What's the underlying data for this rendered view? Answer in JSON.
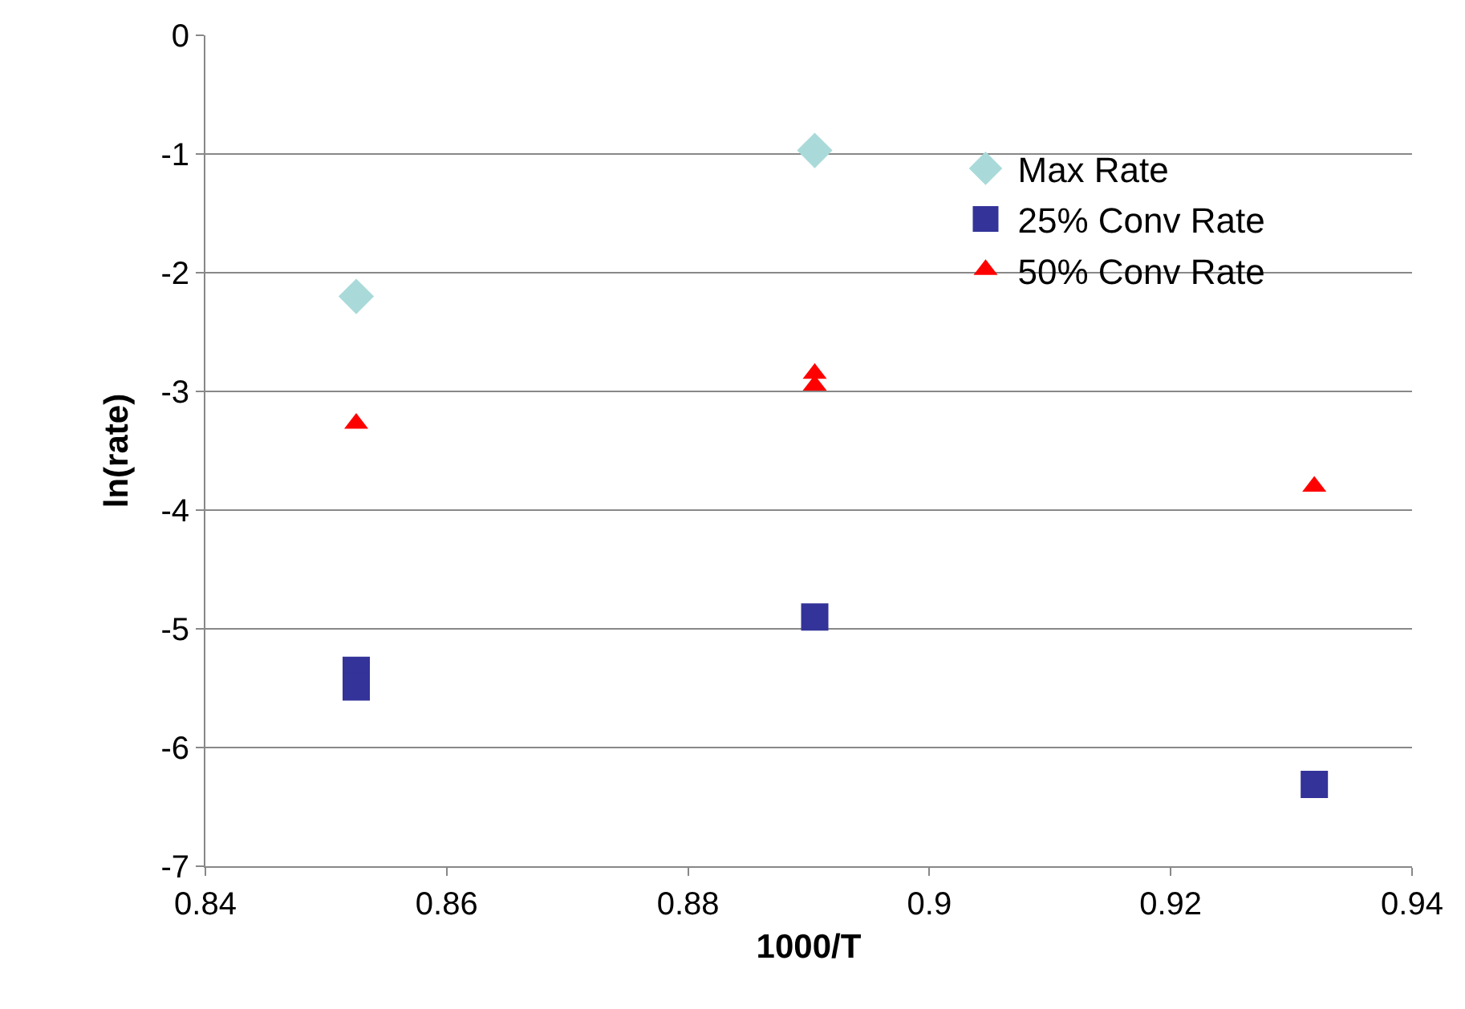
{
  "chart_data": {
    "type": "scatter",
    "xlabel": "1000/T",
    "ylabel": "ln(rate)",
    "xlim": [
      0.84,
      0.94
    ],
    "xticks": [
      0.84,
      0.86,
      0.88,
      0.9,
      0.92,
      0.94
    ],
    "ylim": [
      -7,
      0
    ],
    "yticks": [
      -7,
      -6,
      -5,
      -4,
      -3,
      -2,
      -1,
      0
    ],
    "grid": "y",
    "legend": "top right",
    "series": [
      {
        "name": "Max Rate",
        "color": "#a9dad9",
        "marker": "diamond",
        "x": [
          0.8525,
          0.8905
        ],
        "values": [
          -2.2,
          -0.97
        ]
      },
      {
        "name": "25% Conv Rate",
        "color": "#333399",
        "marker": "square",
        "x": [
          0.8525,
          0.8525,
          0.8905,
          0.9319
        ],
        "values": [
          -5.35,
          -5.49,
          -4.9,
          -6.31
        ]
      },
      {
        "name": "50% Conv Rate",
        "color": "#ff0000",
        "marker": "triangle",
        "x": [
          0.8525,
          0.8905,
          0.8905,
          0.9319
        ],
        "values": [
          -3.27,
          -2.85,
          -2.95,
          -3.8
        ]
      }
    ]
  }
}
